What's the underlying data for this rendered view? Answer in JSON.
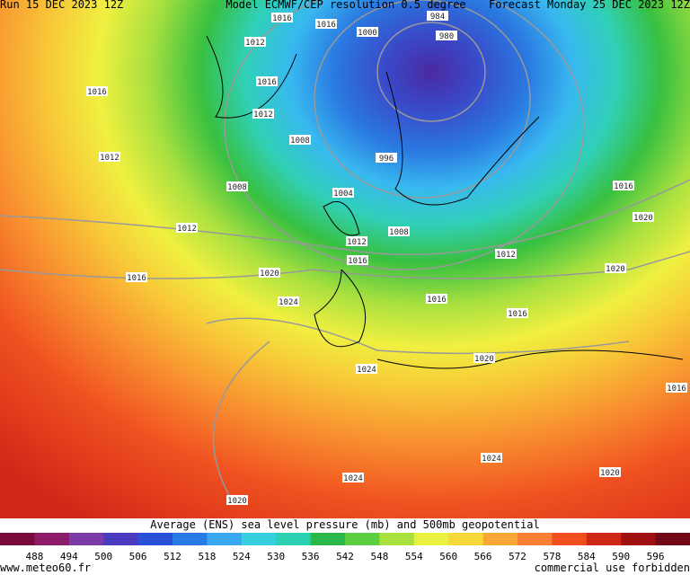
{
  "header": {
    "run": "Run 15 DEC 2023 12Z",
    "model": "Model ECMWF/CEP resolution 0.5 degree",
    "forecast": "Forecast Monday 25 DEC 2023 12Z"
  },
  "isobar_labels": [
    "1016",
    "1016",
    "984",
    "1000",
    "980",
    "1012",
    "1016",
    "1016",
    "1012",
    "1008",
    "996",
    "1012",
    "1008",
    "1004",
    "1016",
    "1020",
    "1012",
    "1008",
    "1012",
    "1016",
    "1012",
    "1020",
    "1016",
    "1020",
    "1016",
    "1024",
    "1016",
    "1020",
    "1024",
    "1016",
    "1024",
    "1024",
    "1020",
    "1020"
  ],
  "caption": "Average (ENS) sea level pressure (mb) and 500mb geopotential",
  "colorbar": {
    "labels": [
      "488",
      "494",
      "500",
      "506",
      "512",
      "518",
      "524",
      "530",
      "536",
      "542",
      "548",
      "554",
      "560",
      "566",
      "572",
      "578",
      "584",
      "590",
      "596"
    ],
    "colors": [
      "#7a0a3a",
      "#8e1a6a",
      "#7a3aa8",
      "#4a3ac0",
      "#2a50d8",
      "#2a7ae8",
      "#3aa8f0",
      "#3acfe0",
      "#2ad0b0",
      "#2ab84a",
      "#5ad040",
      "#a8e040",
      "#e8f040",
      "#f8d838",
      "#f8a838",
      "#f88030",
      "#f05020",
      "#d02818",
      "#a01010",
      "#700818"
    ]
  },
  "footer": {
    "site": "www.meteo60.fr",
    "notice": "commercial use forbidden"
  }
}
